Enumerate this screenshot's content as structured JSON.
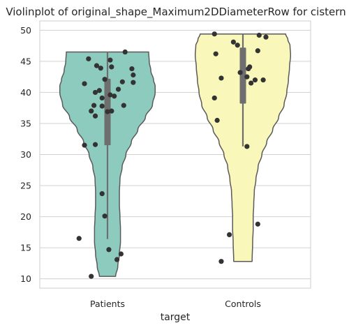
{
  "chart_data": {
    "type": "violin",
    "title": "Violinplot of original_shape_Maximum2DDiameterRow for cistern",
    "xlabel": "target",
    "ylabel": "",
    "ylim": [
      8.5,
      51.5
    ],
    "yticks": [
      10,
      15,
      20,
      25,
      30,
      35,
      40,
      45,
      50
    ],
    "grid": "horizontal",
    "categories": [
      "Patients",
      "Controls"
    ],
    "colors": {
      "Patients": "#8dcbbf",
      "Controls": "#f9f7b9",
      "outline": "#5a5a5a",
      "points": "#333333",
      "box": "#6e6e6e",
      "grid": "#d0d0d0",
      "frame": "#cccccc"
    },
    "series": [
      {
        "name": "Patients",
        "min": 10.4,
        "q1": 31.5,
        "median": 37.8,
        "q3": 42.2,
        "max": 46.5,
        "whisker_low": 16.4,
        "whisker_high": 46.5,
        "density": [
          [
            10.4,
            0.15
          ],
          [
            12,
            0.19
          ],
          [
            14,
            0.22
          ],
          [
            16,
            0.24
          ],
          [
            18,
            0.24
          ],
          [
            20,
            0.23
          ],
          [
            22,
            0.22
          ],
          [
            24,
            0.22
          ],
          [
            26,
            0.23
          ],
          [
            28,
            0.27
          ],
          [
            30,
            0.34
          ],
          [
            32,
            0.44
          ],
          [
            34,
            0.56
          ],
          [
            36,
            0.7
          ],
          [
            38,
            0.83
          ],
          [
            40,
            0.88
          ],
          [
            41,
            0.88
          ],
          [
            42,
            0.85
          ],
          [
            43.5,
            0.8
          ],
          [
            45,
            0.77
          ],
          [
            46.5,
            0.76
          ]
        ],
        "points": [
          [
            0.13,
            46.5
          ],
          [
            -0.14,
            45.4
          ],
          [
            -0.08,
            44.3
          ],
          [
            -0.05,
            43.9
          ],
          [
            0.03,
            44.1
          ],
          [
            0.02,
            45.2
          ],
          [
            0.18,
            43.8
          ],
          [
            0.19,
            42.8
          ],
          [
            0.11,
            41.7
          ],
          [
            0.19,
            41.6
          ],
          [
            -0.02,
            42.1
          ],
          [
            -0.17,
            41.4
          ],
          [
            0.08,
            40.5
          ],
          [
            -0.06,
            40.3
          ],
          [
            -0.09,
            40.0
          ],
          [
            0.02,
            39.6
          ],
          [
            0.05,
            39.4
          ],
          [
            -0.04,
            39.1
          ],
          [
            -0.1,
            37.9
          ],
          [
            -0.04,
            37.8
          ],
          [
            0.12,
            37.9
          ],
          [
            0.03,
            37.0
          ],
          [
            0.0,
            36.9
          ],
          [
            -0.12,
            37.0
          ],
          [
            -0.09,
            36.2
          ],
          [
            -0.17,
            31.5
          ],
          [
            -0.09,
            31.6
          ],
          [
            -0.04,
            23.7
          ],
          [
            -0.02,
            20.1
          ],
          [
            -0.21,
            16.5
          ],
          [
            0.01,
            14.7
          ],
          [
            0.1,
            14.0
          ],
          [
            0.07,
            13.1
          ],
          [
            -0.12,
            10.4
          ]
        ]
      },
      {
        "name": "Controls",
        "min": 12.8,
        "q1": 38.2,
        "median": 42.0,
        "q3": 47.2,
        "max": 49.4,
        "whisker_low": 31.3,
        "whisker_high": 49.4,
        "density": [
          [
            12.8,
            0.17
          ],
          [
            16,
            0.18
          ],
          [
            18,
            0.19
          ],
          [
            20,
            0.19
          ],
          [
            22,
            0.2
          ],
          [
            24,
            0.21
          ],
          [
            26,
            0.24
          ],
          [
            28,
            0.28
          ],
          [
            30,
            0.35
          ],
          [
            32,
            0.44
          ],
          [
            34,
            0.55
          ],
          [
            36,
            0.66
          ],
          [
            38,
            0.76
          ],
          [
            40,
            0.81
          ],
          [
            42,
            0.84
          ],
          [
            44,
            0.86
          ],
          [
            46,
            0.88
          ],
          [
            47.5,
            0.87
          ],
          [
            48.5,
            0.83
          ],
          [
            49.4,
            0.79
          ]
        ],
        "points": [
          [
            -0.21,
            49.4
          ],
          [
            0.12,
            49.2
          ],
          [
            0.17,
            48.9
          ],
          [
            -0.07,
            48.1
          ],
          [
            -0.04,
            47.6
          ],
          [
            0.11,
            46.7
          ],
          [
            -0.2,
            46.2
          ],
          [
            0.05,
            44.1
          ],
          [
            0.04,
            43.8
          ],
          [
            -0.02,
            43.2
          ],
          [
            -0.16,
            42.3
          ],
          [
            0.03,
            42.5
          ],
          [
            0.09,
            42.0
          ],
          [
            0.15,
            42.0
          ],
          [
            0.06,
            41.5
          ],
          [
            -0.21,
            39.1
          ],
          [
            -0.19,
            35.5
          ],
          [
            0.03,
            31.3
          ],
          [
            0.11,
            18.8
          ],
          [
            -0.1,
            17.1
          ],
          [
            -0.16,
            12.8
          ]
        ]
      }
    ]
  }
}
